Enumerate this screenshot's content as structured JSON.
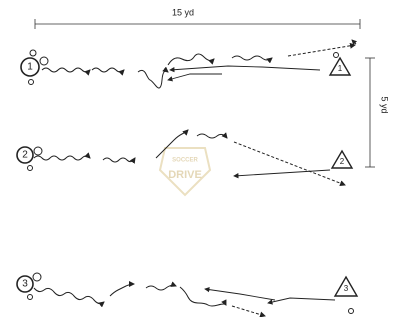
{
  "dimensions": {
    "horizontal": "15 yd",
    "vertical": "5 yd"
  },
  "players": [
    {
      "label": "1"
    },
    {
      "label": "2"
    },
    {
      "label": "3"
    }
  ],
  "cones": [
    {
      "label": "1"
    },
    {
      "label": "2"
    },
    {
      "label": "3"
    }
  ],
  "watermark": {
    "top": "SOCCER",
    "bottom": "DRIVE"
  }
}
